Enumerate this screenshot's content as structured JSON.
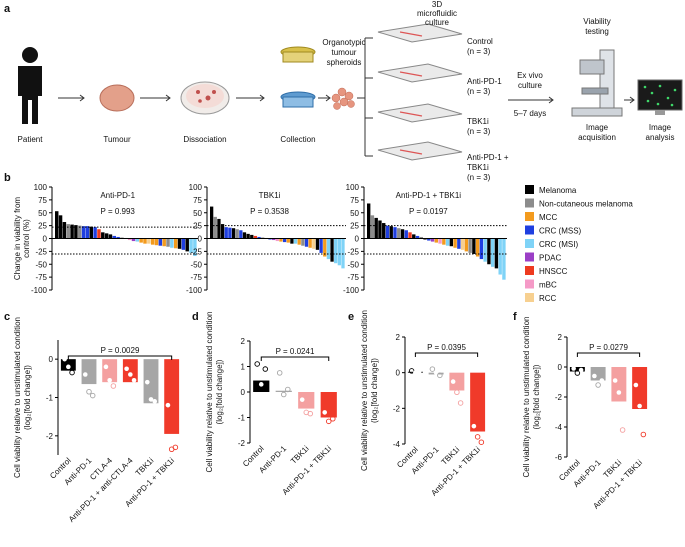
{
  "panel_labels": [
    "a",
    "b",
    "c",
    "d",
    "e",
    "f"
  ],
  "diagram": {
    "patient": "Patient",
    "tumour": "Tumour",
    "dissociation": "Dissociation",
    "collection": "Collection",
    "spheroids": [
      "Organotypic",
      "tumour",
      "spheroids"
    ],
    "culture": [
      "3D",
      "microfluidic",
      "culture"
    ],
    "conditions": [
      [
        "Control",
        "(n = 3)"
      ],
      [
        "Anti-PD-1",
        "(n = 3)"
      ],
      [
        "TBK1i",
        "(n = 3)"
      ],
      [
        "Anti-PD-1 +",
        "TBK1i",
        "(n = 3)"
      ]
    ],
    "ex_vivo": [
      "Ex vivo",
      "culture"
    ],
    "days": "5–7 days",
    "viability": [
      "Viability",
      "testing"
    ],
    "acquisition": [
      "Image",
      "acquisition"
    ],
    "analysis": [
      "Image",
      "analysis"
    ]
  },
  "legend": [
    {
      "name": "Melanoma",
      "color": "#000000"
    },
    {
      "name": "Non-cutaneous melanoma",
      "color": "#8c8c8c"
    },
    {
      "name": "MCC",
      "color": "#f39b1e"
    },
    {
      "name": "CRC (MSS)",
      "color": "#1f3fe0"
    },
    {
      "name": "CRC (MSI)",
      "color": "#7fd3f7"
    },
    {
      "name": "PDAC",
      "color": "#9b3fc6"
    },
    {
      "name": "HNSCC",
      "color": "#ee3a1f"
    },
    {
      "name": "mBC",
      "color": "#f59ac7"
    },
    {
      "name": "RCC",
      "color": "#f7d090"
    }
  ],
  "chart_data": [
    {
      "type": "waterfall",
      "title": "Anti-PD-1",
      "annotation": "P = 0.993",
      "ylabel": [
        "Change in viability from",
        "control (%)"
      ],
      "ylim": [
        -100,
        100
      ],
      "yticks": [
        -100,
        -75,
        -50,
        -25,
        0,
        25,
        50,
        75,
        100
      ],
      "threshold_lines": [
        22,
        -30
      ],
      "values": [
        53,
        45,
        32,
        28,
        27,
        26,
        25,
        24,
        24,
        23,
        22,
        18,
        12,
        10,
        8,
        5,
        3,
        2,
        1,
        -3,
        -5,
        -6,
        -8,
        -10,
        -10,
        -12,
        -13,
        -14,
        -15,
        -16,
        -18,
        -19,
        -20,
        -22,
        -25,
        -28,
        -34
      ],
      "colors": [
        "#000000",
        "#000000",
        "#000000",
        "#8c8c8c",
        "#000000",
        "#000000",
        "#8c8c8c",
        "#1f3fe0",
        "#1f3fe0",
        "#000000",
        "#1f3fe0",
        "#ee3a1f",
        "#000000",
        "#000000",
        "#000000",
        "#1f3fe0",
        "#1f3fe0",
        "#8c8c8c",
        "#000000",
        "#f59ac7",
        "#9b3fc6",
        "#7fd3f7",
        "#f39b1e",
        "#f39b1e",
        "#f7d090",
        "#f39b1e",
        "#f39b1e",
        "#1f3fe0",
        "#f39b1e",
        "#8c8c8c",
        "#7fd3f7",
        "#f39b1e",
        "#000000",
        "#1f3fe0",
        "#000000",
        "#7fd3f7",
        "#7fd3f7"
      ]
    },
    {
      "type": "waterfall",
      "title": "TBK1i",
      "annotation": "P = 0.3538",
      "ylim": [
        -100,
        100
      ],
      "yticks": [
        -100,
        -75,
        -50,
        -25,
        0,
        25,
        50,
        75,
        100
      ],
      "threshold_lines": [
        25,
        -30
      ],
      "values": [
        62,
        42,
        38,
        28,
        22,
        21,
        20,
        18,
        16,
        12,
        9,
        7,
        5,
        3,
        2,
        1,
        -2,
        -3,
        -5,
        -6,
        -7,
        -8,
        -10,
        -10,
        -12,
        -14,
        -16,
        -18,
        -20,
        -22,
        -28,
        -35,
        -40,
        -45,
        -48,
        -52,
        -58
      ],
      "colors": [
        "#000000",
        "#8c8c8c",
        "#000000",
        "#000000",
        "#1f3fe0",
        "#1f3fe0",
        "#000000",
        "#8c8c8c",
        "#1f3fe0",
        "#000000",
        "#000000",
        "#000000",
        "#ee3a1f",
        "#1f3fe0",
        "#8c8c8c",
        "#000000",
        "#1f3fe0",
        "#9b3fc6",
        "#f59ac7",
        "#f39b1e",
        "#1f3fe0",
        "#f39b1e",
        "#000000",
        "#7fd3f7",
        "#f39b1e",
        "#8c8c8c",
        "#1f3fe0",
        "#f39b1e",
        "#f7d090",
        "#000000",
        "#1f3fe0",
        "#f39b1e",
        "#7fd3f7",
        "#000000",
        "#7fd3f7",
        "#7fd3f7",
        "#7fd3f7"
      ]
    },
    {
      "type": "waterfall",
      "title": "Anti-PD-1 + TBK1i",
      "annotation": "P = 0.0197",
      "ylim": [
        -100,
        100
      ],
      "yticks": [
        -100,
        -75,
        -50,
        -25,
        0,
        25,
        50,
        75,
        100
      ],
      "threshold_lines": [
        25,
        -30
      ],
      "values": [
        68,
        45,
        40,
        35,
        30,
        25,
        24,
        22,
        20,
        18,
        16,
        12,
        8,
        5,
        3,
        -2,
        -4,
        -6,
        -8,
        -10,
        -12,
        -14,
        -15,
        -18,
        -20,
        -22,
        -25,
        -28,
        -30,
        -35,
        -40,
        -45,
        -50,
        -55,
        -58,
        -70,
        -80
      ],
      "colors": [
        "#000000",
        "#8c8c8c",
        "#000000",
        "#000000",
        "#000000",
        "#1f3fe0",
        "#000000",
        "#1f3fe0",
        "#8c8c8c",
        "#000000",
        "#1f3fe0",
        "#ee3a1f",
        "#000000",
        "#1f3fe0",
        "#8c8c8c",
        "#000000",
        "#1f3fe0",
        "#9b3fc6",
        "#f39b1e",
        "#f59ac7",
        "#f39b1e",
        "#7fd3f7",
        "#000000",
        "#f39b1e",
        "#1f3fe0",
        "#f7d090",
        "#f39b1e",
        "#8c8c8c",
        "#000000",
        "#f39b1e",
        "#1f3fe0",
        "#7fd3f7",
        "#000000",
        "#7fd3f7",
        "#000000",
        "#7fd3f7",
        "#7fd3f7"
      ]
    },
    {
      "type": "bar",
      "annotation": "P = 0.0029",
      "ylabel": [
        "Cell viability relative to unstimulated condition",
        "(log₂[fold change])"
      ],
      "categories": [
        "Control",
        "Anti-PD-1",
        "CTLA-4",
        "Anti-PD-1 + anti-CTLA-4",
        "TBK1i",
        "Anti-PD-1 + TBK1i"
      ],
      "values": [
        -0.3,
        -0.65,
        -0.6,
        -0.6,
        -1.15,
        -1.95
      ],
      "colors": [
        "#000000",
        "#a6a6a6",
        "#f4a0a0",
        "#f03a2a",
        "#a6a6a6",
        "#f03a2a"
      ],
      "points": [
        [
          0,
          -0.2,
          -0.35
        ],
        [
          -0.4,
          -0.85,
          -0.95
        ],
        [
          -0.2,
          -0.55,
          -0.7
        ],
        [
          -0.25,
          -0.4,
          -0.55
        ],
        [
          -0.6,
          -1.05,
          -1.1
        ],
        [
          -1.2,
          -2.35,
          -2.3
        ]
      ],
      "ylim": [
        -2.5,
        0.5
      ],
      "yticks": [
        -2,
        -1,
        0
      ]
    },
    {
      "type": "bar",
      "annotation": "P = 0.0241",
      "ylabel": [
        "Cell viability relative to unstimulated condition",
        "(log₂[fold change])"
      ],
      "categories": [
        "Control",
        "Anti-PD-1",
        "TBK1i",
        "Anti-PD-1 + TBK1i"
      ],
      "values": [
        0.45,
        0.05,
        -0.65,
        -1.0
      ],
      "colors": [
        "#000000",
        "#a6a6a6",
        "#f4a0a0",
        "#f03a2a"
      ],
      "points": [
        [
          1.1,
          0.3,
          0.9
        ],
        [
          0.75,
          -0.1,
          0.1
        ],
        [
          -0.3,
          -0.8,
          -0.85
        ],
        [
          -0.8,
          -1.15,
          -1.05
        ]
      ],
      "ylim": [
        -2,
        2
      ],
      "yticks": [
        -2,
        -1,
        0,
        1,
        2
      ]
    },
    {
      "type": "bar",
      "annotation": "P = 0.0395",
      "ylabel": [
        "Cell viability relative to unstimulated condition",
        "(log₂[fold change])"
      ],
      "categories": [
        "Control",
        "Anti-PD-1",
        "TBK1i",
        "Anti-PD-1 + TBK1i"
      ],
      "values": [
        0.05,
        -0.1,
        -1.0,
        -3.3
      ],
      "colors": [
        "#000000",
        "#a6a6a6",
        "#f4a0a0",
        "#f03a2a"
      ],
      "points": [
        [
          0.1,
          0,
          0.05
        ],
        [
          0.2,
          0,
          -0.15
        ],
        [
          -0.5,
          -1.1,
          -1.7
        ],
        [
          -3.0,
          -3.6,
          -3.9
        ]
      ],
      "ylim": [
        -4,
        2
      ],
      "yticks": [
        -4,
        -2,
        0,
        2
      ]
    },
    {
      "type": "bar",
      "annotation": "P = 0.0279",
      "ylabel": [
        "Cell viability relative to unstimulated condition",
        "(log₂[fold change])"
      ],
      "categories": [
        "Control",
        "Anti-PD-1",
        "TBK1i",
        "Anti-PD-1 + TBK1i"
      ],
      "values": [
        -0.3,
        -0.9,
        -2.3,
        -2.8
      ],
      "colors": [
        "#000000",
        "#a6a6a6",
        "#f4a0a0",
        "#f03a2a"
      ],
      "points": [
        [
          -0.1,
          -0.4,
          -0.2
        ],
        [
          -0.6,
          -1.2,
          -0.9
        ],
        [
          -0.9,
          -1.7,
          -4.2
        ],
        [
          -1.2,
          -2.6,
          -4.5
        ]
      ],
      "ylim": [
        -6,
        2
      ],
      "yticks": [
        -6,
        -4,
        -2,
        0,
        2
      ]
    }
  ]
}
